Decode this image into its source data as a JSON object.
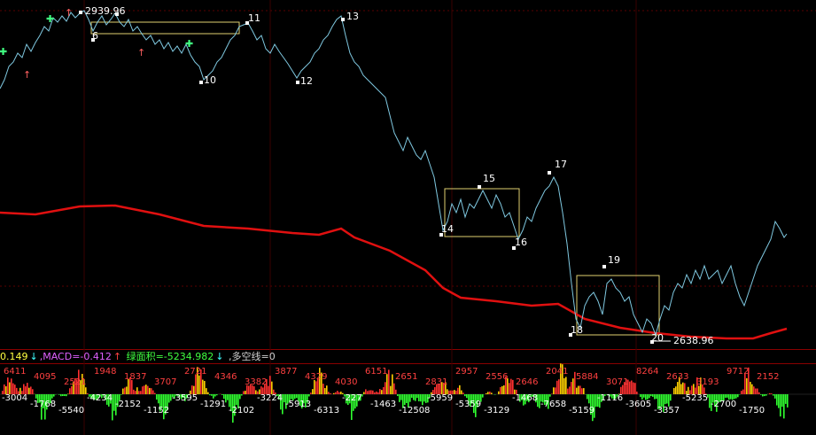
{
  "colors": {
    "background": "#000000",
    "price_line": "#7fc8e0",
    "ma_line": "#e01010",
    "pivot_label": "#ffffff",
    "box": "#e0d070",
    "grid": "#5a0000",
    "up_arrow": "#ff6060",
    "down_arrow": "#40ff80",
    "hist_pos": "#ff3030",
    "hist_neg": "#30ff30",
    "hist_yellow": "#ffd000"
  },
  "price_labels": {
    "high": "2939.96",
    "low": "2638.96"
  },
  "pivots": [
    {
      "id": "p6",
      "label": "6"
    },
    {
      "id": "p10",
      "label": "10"
    },
    {
      "id": "p11",
      "label": "11"
    },
    {
      "id": "p12",
      "label": "12"
    },
    {
      "id": "p13",
      "label": "13"
    },
    {
      "id": "p14",
      "label": "14"
    },
    {
      "id": "p15",
      "label": "15"
    },
    {
      "id": "p16",
      "label": "16"
    },
    {
      "id": "p17",
      "label": "17"
    },
    {
      "id": "p18",
      "label": "18"
    },
    {
      "id": "p19",
      "label": "19"
    },
    {
      "id": "p20",
      "label": "20"
    }
  ],
  "indicator_bar": {
    "dif_value": "0.149",
    "dif_arrow": "↓",
    "macd_text": ",MACD=-0.412",
    "macd_arrow": "↑",
    "area_text": "绿面积=-5234.982",
    "area_arrow": "↓",
    "bull_bear_text": ",多空线=0"
  },
  "histogram_labels_top": [
    "6411",
    "4095",
    "2521",
    "1948",
    "1837",
    "3707",
    "2721",
    "4346",
    "3382",
    "3877",
    "4329",
    "4030",
    "6151",
    "2651",
    "2831",
    "2957",
    "2556",
    "2646",
    "2041",
    "5884",
    "3071",
    "8264",
    "2633",
    "3193",
    "9712",
    "2152"
  ],
  "histogram_labels_bottom": [
    "-3004",
    "-1768",
    "-5540",
    "-4234",
    "-2152",
    "-1152",
    "-3595",
    "-1291",
    "-2102",
    "-3224",
    "-5913",
    "-6313",
    "-227",
    "-1463",
    "-12508",
    "-5959",
    "-5359",
    "-3129",
    "-1468",
    "-7658",
    "-5159",
    "-1116",
    "-3605",
    "-3357",
    "-5235",
    "-2700",
    "-1750"
  ]
}
